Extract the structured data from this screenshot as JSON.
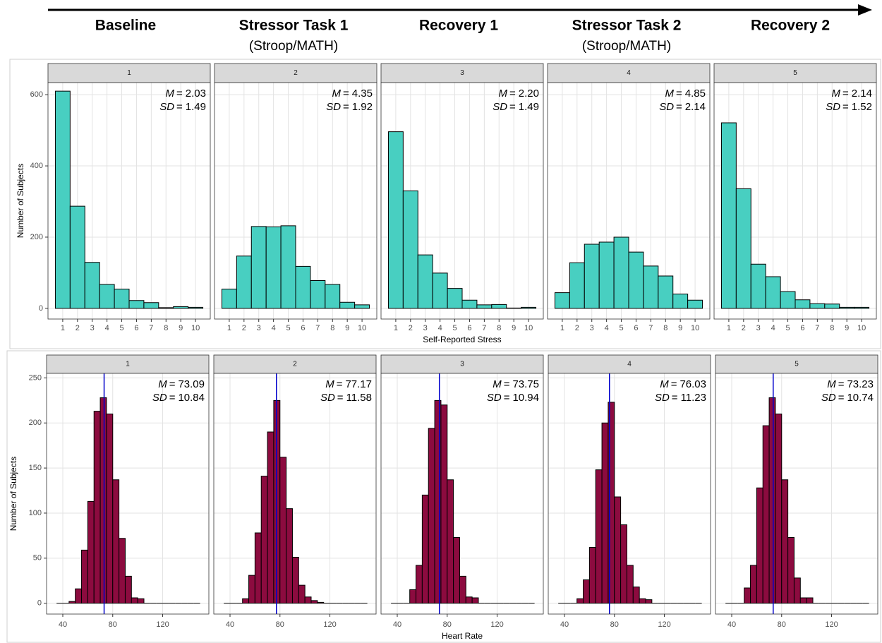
{
  "header": {
    "phases": [
      {
        "title": "Baseline"
      },
      {
        "title": "Stressor Task 1",
        "subtitle": "(Stroop/MATH)"
      },
      {
        "title": "Recovery 1"
      },
      {
        "title": "Stressor Task 2",
        "subtitle": "(Stroop/MATH)"
      },
      {
        "title": "Recovery 2"
      }
    ]
  },
  "chart_data": [
    {
      "type": "bar",
      "x_label": "Self-Reported Stress",
      "y_label": "Number of Subjects",
      "color": "#48cfc1",
      "grid": true,
      "mean_symbol": "M",
      "sd_symbol": "SD",
      "equals": "=",
      "categories": [
        "1",
        "2",
        "3",
        "4",
        "5",
        "6",
        "7",
        "8",
        "9",
        "10"
      ],
      "ylim": [
        -30,
        634
      ],
      "yticks": [
        0,
        200,
        400,
        600
      ],
      "panels": [
        {
          "strip": "1",
          "values": [
            610,
            287,
            129,
            67,
            54,
            22,
            16,
            2,
            5,
            3
          ],
          "mean": 2.03,
          "mean_label": "2.03",
          "sd": 1.49,
          "sd_label": "1.49"
        },
        {
          "strip": "2",
          "values": [
            54,
            147,
            230,
            229,
            232,
            118,
            78,
            67,
            17,
            10
          ],
          "mean": 4.35,
          "mean_label": "4.35",
          "sd": 1.92,
          "sd_label": "1.92"
        },
        {
          "strip": "3",
          "values": [
            496,
            330,
            150,
            99,
            56,
            23,
            10,
            11,
            1,
            3
          ],
          "mean": 2.2,
          "mean_label": "2.20",
          "sd": 1.49,
          "sd_label": "1.49"
        },
        {
          "strip": "4",
          "values": [
            44,
            128,
            180,
            186,
            200,
            158,
            119,
            91,
            40,
            23
          ],
          "mean": 4.85,
          "mean_label": "4.85",
          "sd": 2.14,
          "sd_label": "2.14"
        },
        {
          "strip": "5",
          "values": [
            521,
            336,
            124,
            89,
            47,
            24,
            13,
            12,
            3,
            3
          ],
          "mean": 2.14,
          "mean_label": "2.14",
          "sd": 1.52,
          "sd_label": "1.52"
        }
      ]
    },
    {
      "type": "histogram",
      "x_label": "Heart Rate",
      "y_label": "Number of Subjects",
      "color": "#8c0b3f",
      "mean_line_color": "#0000cc",
      "grid": true,
      "mean_symbol": "M",
      "sd_symbol": "SD",
      "equals": "=",
      "bins": [
        35,
        40,
        45,
        50,
        55,
        60,
        65,
        70,
        75,
        80,
        85,
        90,
        95,
        100,
        105,
        110,
        115,
        120,
        125,
        130,
        135,
        140,
        145,
        150
      ],
      "xlim": [
        27,
        157
      ],
      "xticks": [
        40,
        80,
        120
      ],
      "ylim": [
        -12,
        255
      ],
      "yticks": [
        0,
        50,
        100,
        150,
        200,
        250
      ],
      "panels": [
        {
          "strip": "1",
          "values": [
            0,
            0,
            2,
            16,
            59,
            113,
            213,
            228,
            210,
            137,
            72,
            30,
            6,
            5,
            0,
            0,
            0,
            0,
            0,
            0,
            0,
            0,
            0
          ],
          "mean": 73.09,
          "mean_label": "73.09",
          "sd": 10.84,
          "sd_label": "10.84"
        },
        {
          "strip": "2",
          "values": [
            0,
            0,
            0,
            5,
            31,
            78,
            141,
            190,
            225,
            162,
            105,
            51,
            20,
            7,
            3,
            1,
            0,
            0,
            0,
            0,
            0,
            0,
            0
          ],
          "mean": 77.17,
          "mean_label": "77.17",
          "sd": 11.58,
          "sd_label": "11.58"
        },
        {
          "strip": "3",
          "values": [
            0,
            0,
            0,
            15,
            42,
            120,
            194,
            225,
            220,
            137,
            73,
            30,
            7,
            6,
            0,
            0,
            0,
            0,
            0,
            0,
            0,
            0,
            0
          ],
          "mean": 73.75,
          "mean_label": "73.75",
          "sd": 10.94,
          "sd_label": "10.94"
        },
        {
          "strip": "4",
          "values": [
            0,
            0,
            0,
            5,
            26,
            62,
            148,
            200,
            223,
            118,
            87,
            42,
            18,
            5,
            4,
            0,
            0,
            0,
            0,
            0,
            0,
            0,
            0
          ],
          "mean": 76.03,
          "mean_label": "76.03",
          "sd": 11.23,
          "sd_label": "11.23"
        },
        {
          "strip": "5",
          "values": [
            0,
            0,
            0,
            17,
            42,
            128,
            197,
            228,
            210,
            137,
            73,
            28,
            6,
            6,
            0,
            0,
            0,
            0,
            0,
            0,
            0,
            0,
            0
          ],
          "mean": 73.23,
          "mean_label": "73.23",
          "sd": 10.74,
          "sd_label": "10.74"
        }
      ]
    }
  ]
}
